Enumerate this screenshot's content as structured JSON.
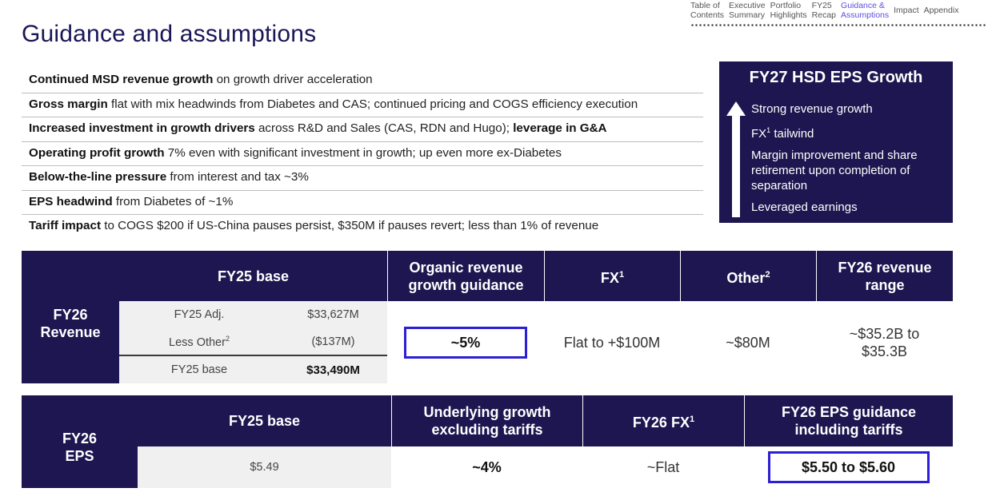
{
  "nav": {
    "items": [
      {
        "line1": "Table of",
        "line2": "Contents"
      },
      {
        "line1": "Executive",
        "line2": "Summary"
      },
      {
        "line1": "Portfolio",
        "line2": "Highlights"
      },
      {
        "line1": "FY25",
        "line2": "Recap"
      },
      {
        "line1": "Guidance &",
        "line2": "Assumptions"
      },
      {
        "line1": "Impact",
        "line2": ""
      },
      {
        "line1": "Appendix",
        "line2": ""
      }
    ]
  },
  "title": "Guidance and assumptions",
  "assumptions": [
    {
      "bold": "Continued MSD revenue growth",
      "text": " on growth driver acceleration",
      "bold2": ""
    },
    {
      "bold": "Gross margin",
      "text": " flat with mix headwinds from Diabetes and CAS; continued pricing and COGS efficiency execution",
      "bold2": ""
    },
    {
      "bold": "Increased investment in growth drivers",
      "text": " across R&D and Sales (CAS, RDN and Hugo); ",
      "bold2": "leverage in G&A"
    },
    {
      "bold": "Operating profit growth",
      "text": " 7% even with significant investment in growth; up even more ex-Diabetes",
      "bold2": ""
    },
    {
      "bold": "Below-the-line pressure",
      "text": " from interest and tax ~3%",
      "bold2": ""
    },
    {
      "bold": "EPS headwind",
      "text": " from Diabetes of ~1%",
      "bold2": ""
    },
    {
      "bold": "Tariff impact",
      "text": " to COGS $200 if US-China pauses persist, $350M if pauses revert; less than 1% of revenue",
      "bold2": ""
    }
  ],
  "growth_box": {
    "title": "FY27 HSD EPS Growth",
    "item1": "Strong revenue growth",
    "item2_pre": "FX",
    "item2_sup": "1",
    "item2_post": " tailwind",
    "item3": "Margin improvement and share retirement upon completion of separation",
    "item4": "Leveraged earnings"
  },
  "revenue": {
    "label_line1": "FY26",
    "label_line2": "Revenue",
    "h_base": "FY25 base",
    "h_organic_line1": "Organic revenue",
    "h_organic_line2": "growth guidance",
    "h_fx": "FX",
    "h_fx_sup": "1",
    "h_other": "Other",
    "h_other_sup": "2",
    "h_range_line1": "FY26 revenue",
    "h_range_line2": "range",
    "base_rows": {
      "r1_label": "FY25 Adj.",
      "r1_value": "$33,627M",
      "r2_label": "Less Other",
      "r2_sup": "2",
      "r2_value": "($137M)",
      "r3_label": "FY25 base",
      "r3_value": "$33,490M"
    },
    "organic_value": "~5%",
    "fx_value": "Flat to +$100M",
    "other_value": "~$80M",
    "range_line1": "~$35.2B to",
    "range_line2": "$35.3B"
  },
  "eps": {
    "label_line1": "FY26",
    "label_line2": "EPS",
    "h_base": "FY25 base",
    "h_underlying_line1": "Underlying growth",
    "h_underlying_line2": "excluding tariffs",
    "h_fx": "FY26 FX",
    "h_fx_sup": "1",
    "h_guidance_line1": "FY26 EPS guidance",
    "h_guidance_line2": "including tariffs",
    "base_value": "$5.49",
    "underlying_value": "~4%",
    "fx_value": "~Flat",
    "guidance_value": "$5.50 to $5.60"
  },
  "colors": {
    "navy": "#1d1650",
    "highlight": "#2d1fd6",
    "active_nav": "#5b4fe0"
  }
}
